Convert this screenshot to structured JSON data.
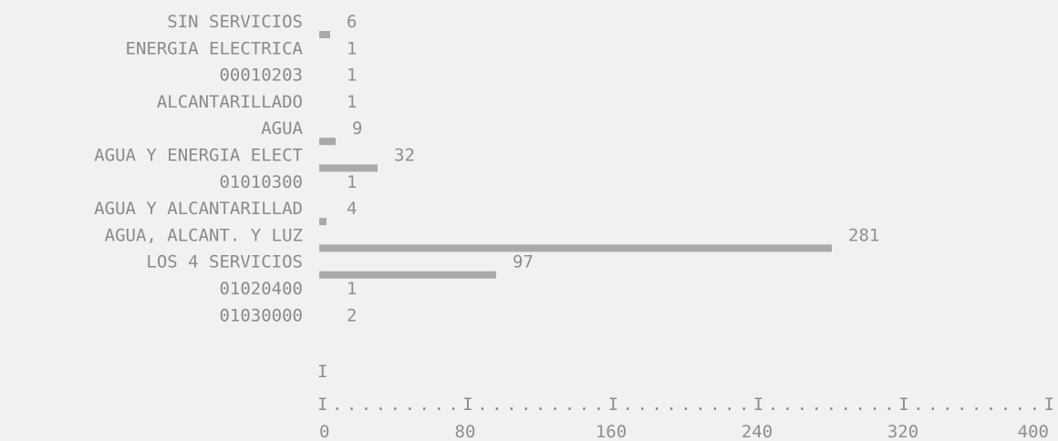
{
  "chart_data": {
    "type": "bar",
    "orientation": "horizontal",
    "title": "",
    "xlabel": "",
    "ylabel": "",
    "xlim": [
      0,
      400
    ],
    "x_ticks": [
      0,
      80,
      160,
      240,
      320,
      400
    ],
    "categories": [
      "SIN SERVICIOS",
      "ENERGIA ELECTRICA",
      "00010203",
      "ALCANTARILLADO",
      "AGUA",
      "AGUA Y ENERGIA ELECT",
      "01010300",
      "AGUA Y ALCANTARILLAD",
      "AGUA, ALCANT. Y LUZ",
      "LOS 4 SERVICIOS",
      "01020400",
      "01030000"
    ],
    "values": [
      6,
      1,
      1,
      1,
      9,
      32,
      1,
      4,
      281,
      97,
      1,
      2
    ],
    "colors": {
      "bar": "#a9a9a9",
      "text": "#8a8a8a",
      "background": "#f1f1f1"
    }
  }
}
